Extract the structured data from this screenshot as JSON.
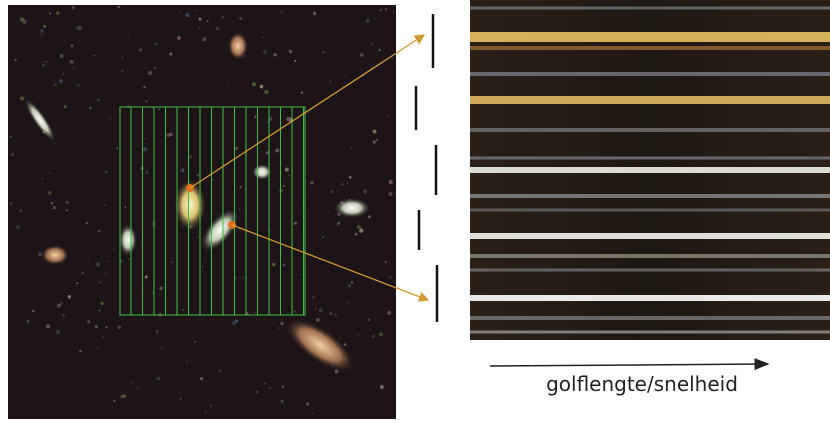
{
  "axis_label": "golflengte/snelheid"
}
